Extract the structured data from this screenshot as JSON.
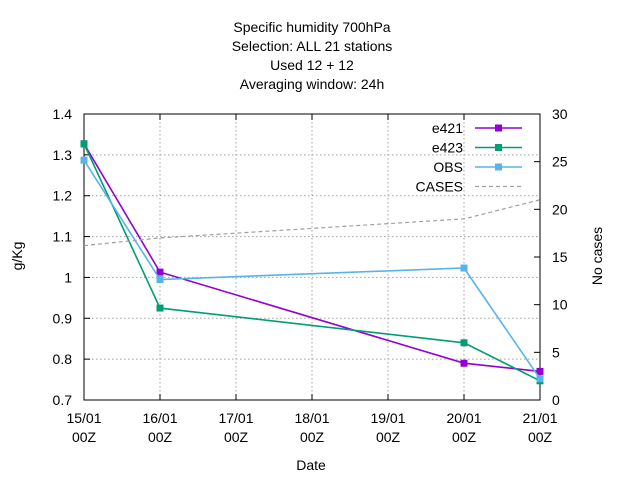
{
  "chart_data": {
    "type": "line",
    "title_lines": [
      "Specific humidity 700hPa",
      "Selection: ALL      21 stations",
      "Used  12  + 12",
      "Averaging window: 24h"
    ],
    "xlabel": "Date",
    "ylabel": "g/Kg",
    "y2label": "No cases",
    "x": [
      0,
      1,
      2,
      3,
      4,
      5,
      6
    ],
    "x_ticks": [
      {
        "x": 0,
        "line1": "15/01",
        "line2": "00Z"
      },
      {
        "x": 1,
        "line1": "16/01",
        "line2": "00Z"
      },
      {
        "x": 2,
        "line1": "17/01",
        "line2": "00Z"
      },
      {
        "x": 3,
        "line1": "18/01",
        "line2": "00Z"
      },
      {
        "x": 4,
        "line1": "19/01",
        "line2": "00Z"
      },
      {
        "x": 5,
        "line1": "20/01",
        "line2": "00Z"
      },
      {
        "x": 6,
        "line1": "21/01",
        "line2": "00Z"
      }
    ],
    "xlim": [
      0,
      6
    ],
    "ylim": [
      0.7,
      1.4
    ],
    "y_ticks": [
      "0.7",
      "0.8",
      "0.9",
      "1",
      "1.1",
      "1.2",
      "1.3",
      "1.4"
    ],
    "y2lim": [
      0,
      30
    ],
    "y2_ticks": [
      "0",
      "5",
      "10",
      "15",
      "20",
      "25",
      "30"
    ],
    "grid": true,
    "legend_position": "top-right",
    "series": [
      {
        "name": "e421",
        "axis": "left",
        "color": "#9400d3",
        "marker": "filled-square",
        "points": [
          [
            0,
            1.327
          ],
          [
            1,
            1.013
          ],
          [
            5,
            0.79
          ],
          [
            6,
            0.77
          ]
        ]
      },
      {
        "name": "e423",
        "axis": "left",
        "color": "#009e73",
        "marker": "filled-square",
        "points": [
          [
            0,
            1.327
          ],
          [
            1,
            0.925
          ],
          [
            5,
            0.84
          ],
          [
            6,
            0.747
          ]
        ]
      },
      {
        "name": "OBS",
        "axis": "left",
        "color": "#56b4e9",
        "marker": "filled-square",
        "points": [
          [
            0,
            1.287
          ],
          [
            1,
            0.995
          ],
          [
            5,
            1.023
          ],
          [
            6,
            0.752
          ]
        ]
      },
      {
        "name": "CASES",
        "axis": "right",
        "color": "#a0a0a0",
        "dashed": true,
        "marker": "none",
        "points": [
          [
            0,
            16.2
          ],
          [
            1,
            17
          ],
          [
            5,
            19
          ],
          [
            6,
            21
          ]
        ]
      }
    ]
  }
}
